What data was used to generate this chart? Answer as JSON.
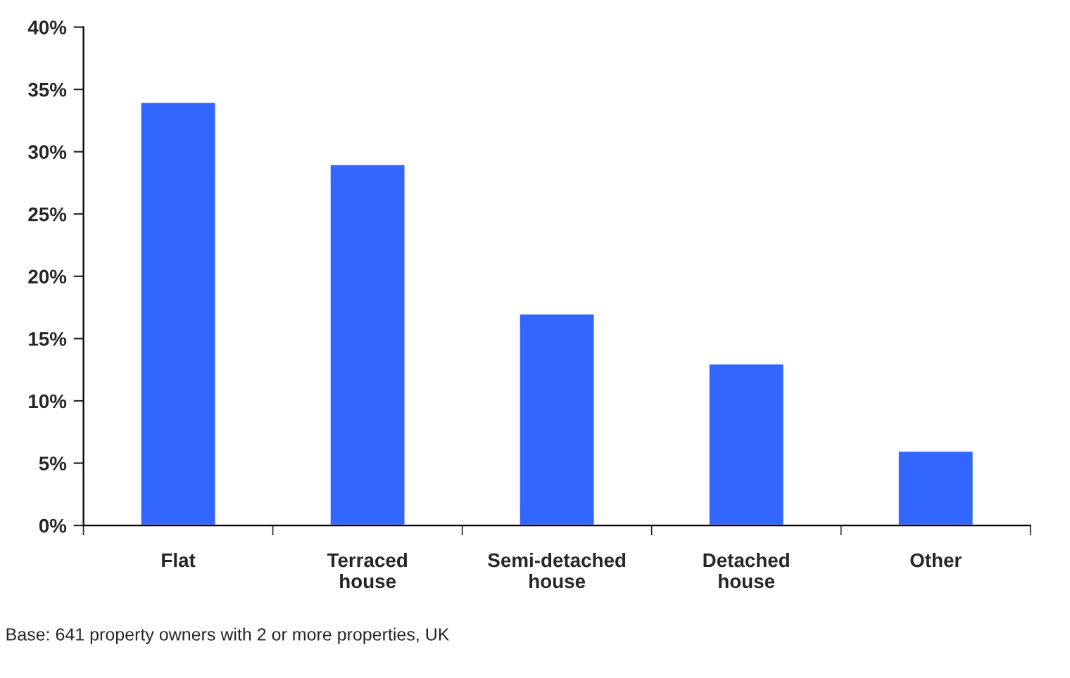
{
  "chart_data": {
    "type": "bar",
    "categories": [
      "Flat",
      "Terraced\nhouse",
      "Semi-detached\nhouse",
      "Detached\nhouse",
      "Other"
    ],
    "values": [
      34,
      29,
      17,
      13,
      6
    ],
    "color": "#3366ff",
    "ylim": [
      0,
      40
    ],
    "yticks": [
      {
        "value": 0,
        "label": "0%"
      },
      {
        "value": 5,
        "label": "5%"
      },
      {
        "value": 10,
        "label": "10%"
      },
      {
        "value": 15,
        "label": "15%"
      },
      {
        "value": 20,
        "label": "20%"
      },
      {
        "value": 25,
        "label": "25%"
      },
      {
        "value": 30,
        "label": "30%"
      },
      {
        "value": 35,
        "label": "35%"
      },
      {
        "value": 40,
        "label": "40%"
      }
    ],
    "grid": false,
    "legend": false,
    "annotations": [
      "Base: 641 property owners with 2 or more properties, UK"
    ]
  }
}
